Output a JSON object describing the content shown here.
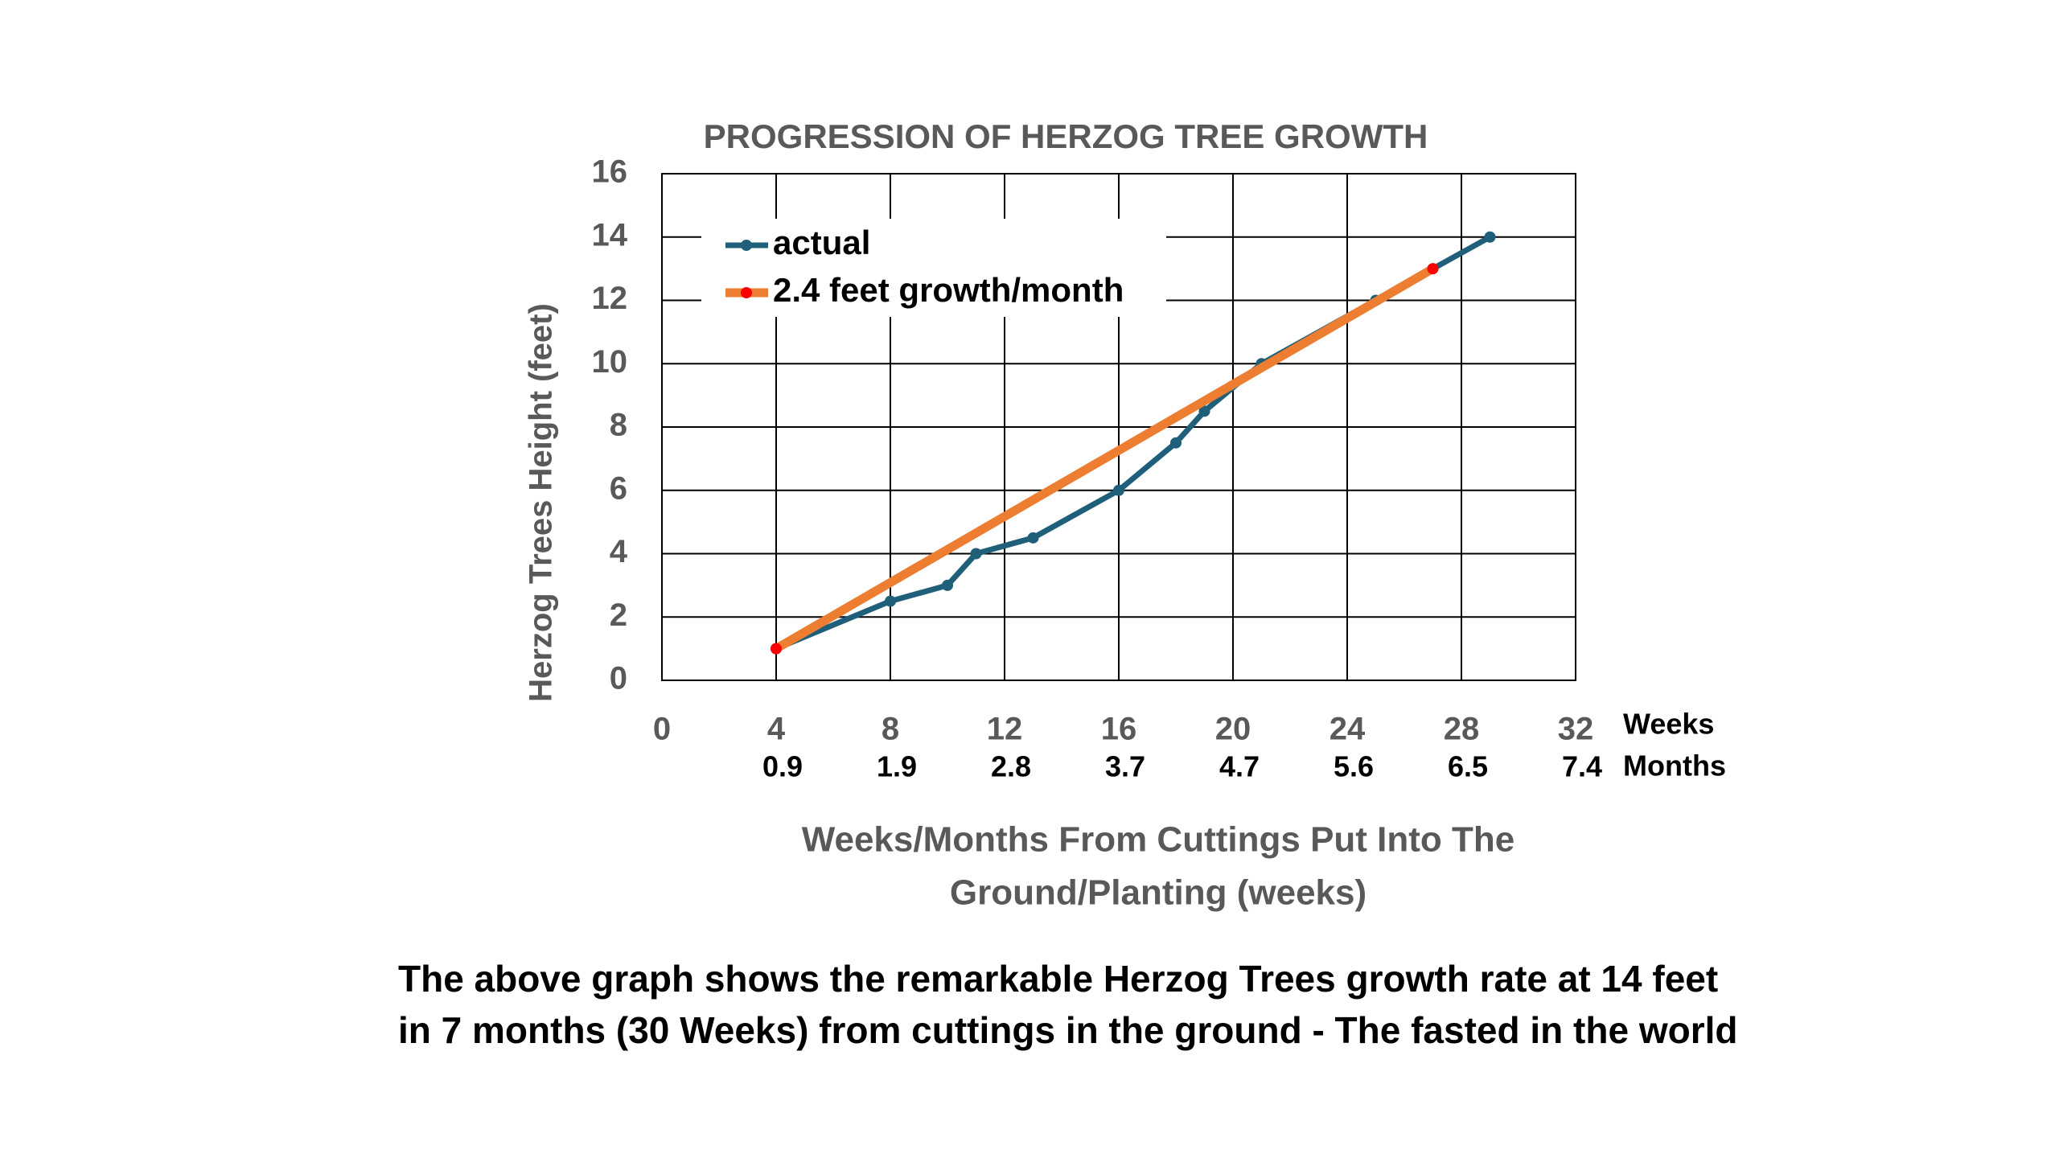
{
  "chart_data": {
    "type": "line",
    "title": "PROGRESSION OF HERZOG TREE GROWTH",
    "y_label": "Herzog Trees Height (feet)",
    "x_label": [
      "Weeks/Months From Cuttings Put Into The",
      "Ground/Planting (weeks)"
    ],
    "xlim": [
      0,
      32
    ],
    "xticks": [
      0,
      4,
      8,
      12,
      16,
      20,
      24,
      28,
      32
    ],
    "x_unit": "Weeks",
    "month_labels": [
      0.9,
      1.9,
      2.8,
      3.7,
      4.7,
      5.6,
      6.5,
      7.4
    ],
    "month_unit": "Months",
    "ylim": [
      0,
      16
    ],
    "yticks": [
      0,
      2,
      4,
      6,
      8,
      10,
      12,
      14,
      16
    ],
    "grid": true,
    "legend": "top-left",
    "series": [
      {
        "name": "actual",
        "color": "#1f5f7a",
        "marker_color": "#1f5f7a",
        "x": [
          4,
          8,
          10,
          11,
          13,
          16,
          18,
          19,
          21,
          25,
          29
        ],
        "values": [
          1,
          2.5,
          3,
          4,
          4.5,
          6,
          7.5,
          8.5,
          10,
          12,
          14
        ]
      },
      {
        "name": "2.4 feet growth/month",
        "color": "#ed7d31",
        "marker_color": "#ff0000",
        "x": [
          4,
          27
        ],
        "values": [
          1,
          13
        ]
      }
    ]
  },
  "caption": [
    "The above graph shows the remarkable Herzog Trees growth rate at 14 feet",
    "in 7 months (30 Weeks) from cuttings in the ground - The fasted in the world"
  ]
}
